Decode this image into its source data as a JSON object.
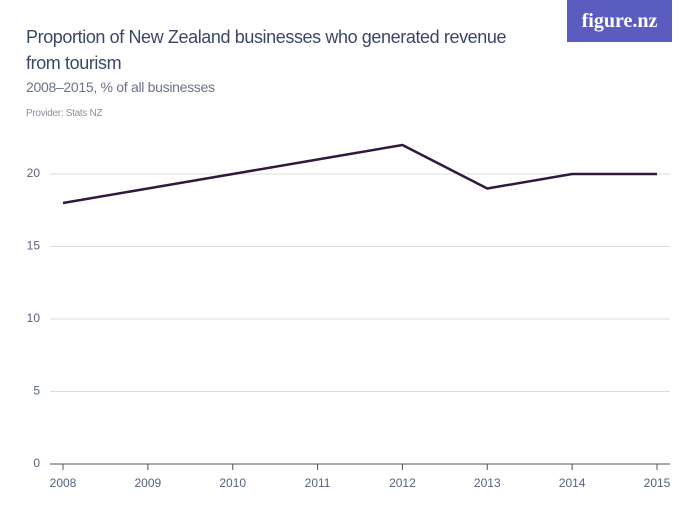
{
  "brand": "figure.nz",
  "chart_data": {
    "type": "line",
    "title": "Proportion of New Zealand businesses who generated revenue from tourism",
    "subtitle": "2008–2015, % of all businesses",
    "provider": "Provider: Stats NZ",
    "x": [
      2008,
      2009,
      2010,
      2011,
      2012,
      2013,
      2014,
      2015
    ],
    "values": [
      18,
      19,
      20,
      21,
      22,
      19,
      20,
      20
    ],
    "color": "#2e1a3f",
    "xlim": [
      2008,
      2015
    ],
    "xticks": [
      2008,
      2009,
      2010,
      2011,
      2012,
      2013,
      2014,
      2015
    ],
    "ylim": [
      0,
      22
    ],
    "yticks": [
      0,
      5,
      10,
      15,
      20
    ],
    "grid": true
  }
}
